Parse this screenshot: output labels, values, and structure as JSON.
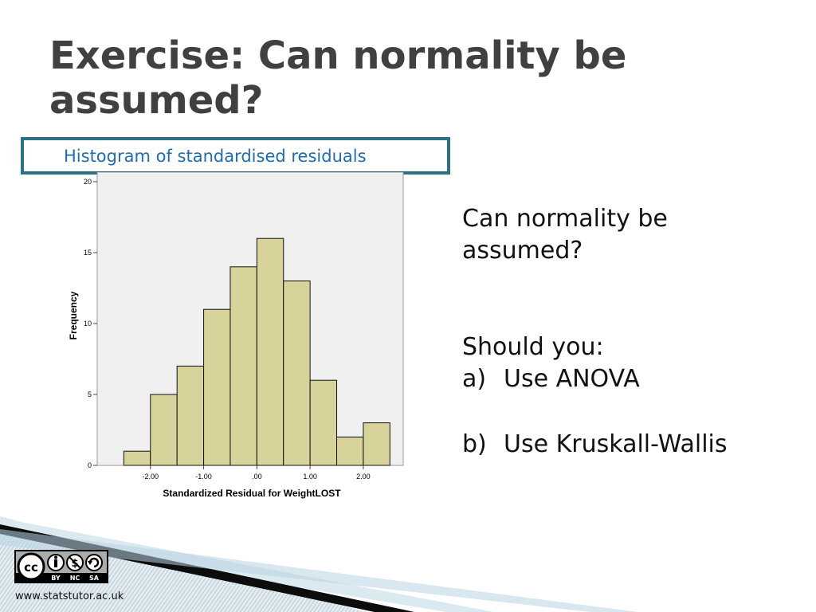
{
  "slide": {
    "title": "Exercise: Can normality be assumed?",
    "caption": "Histogram of standardised residuals",
    "question": [
      "Can normality be",
      "assumed?"
    ],
    "should_label": "Should you:",
    "options": [
      {
        "letter": "a)",
        "text": "Use ANOVA"
      },
      {
        "letter": "b)",
        "text": "Use Kruskall-Wallis"
      }
    ],
    "url": "www.statstutor.ac.uk",
    "license": {
      "icon": "cc-by-nc-sa-icon",
      "labels": [
        "BY",
        "NC",
        "SA"
      ]
    }
  },
  "colors": {
    "bar_fill": "#d7d39a",
    "plot_bg": "#f0f0f0",
    "caption_border": "#2a7384",
    "caption_text": "#1f6cb0",
    "title": "#404040"
  },
  "chart_data": {
    "type": "bar",
    "title": "",
    "xlabel": "Standardized Residual for WeightLOST",
    "ylabel": "Frequency",
    "bin_width": 0.5,
    "bins": [
      {
        "start": -2.5,
        "end": -2.0,
        "count": 1
      },
      {
        "start": -2.0,
        "end": -1.5,
        "count": 5
      },
      {
        "start": -1.5,
        "end": -1.0,
        "count": 7
      },
      {
        "start": -1.0,
        "end": -0.5,
        "count": 11
      },
      {
        "start": -0.5,
        "end": 0.0,
        "count": 14
      },
      {
        "start": 0.0,
        "end": 0.5,
        "count": 16
      },
      {
        "start": 0.5,
        "end": 1.0,
        "count": 13
      },
      {
        "start": 1.0,
        "end": 1.5,
        "count": 6
      },
      {
        "start": 1.5,
        "end": 2.0,
        "count": 2
      },
      {
        "start": 2.0,
        "end": 2.5,
        "count": 3
      }
    ],
    "xlim": [
      -3.0,
      2.75
    ],
    "ylim": [
      0,
      20
    ],
    "xticks": [
      {
        "value": -2.0,
        "label": "-2.00"
      },
      {
        "value": -1.0,
        "label": "-1.00"
      },
      {
        "value": 0.0,
        "label": ".00"
      },
      {
        "value": 1.0,
        "label": "1.00"
      },
      {
        "value": 2.0,
        "label": "2.00"
      }
    ],
    "yticks": [
      {
        "value": 0,
        "label": "0"
      },
      {
        "value": 5,
        "label": "5"
      },
      {
        "value": 10,
        "label": "10"
      },
      {
        "value": 15,
        "label": "15"
      },
      {
        "value": 20,
        "label": "20"
      }
    ],
    "grid": false
  }
}
